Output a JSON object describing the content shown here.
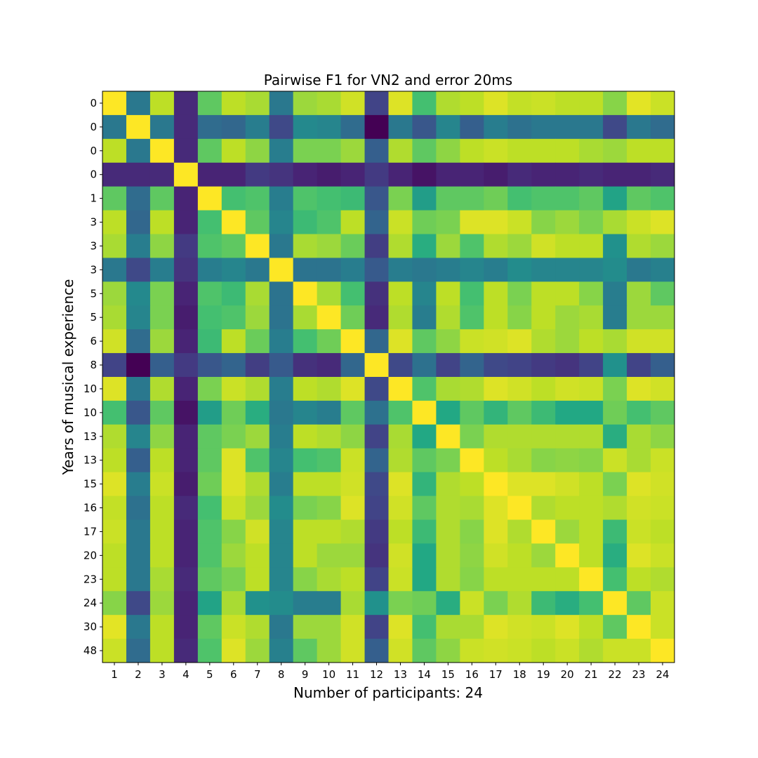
{
  "chart_data": {
    "type": "heatmap",
    "title": "Pairwise F1 for VN2 and error 20ms",
    "xlabel": "Number of participants: 24",
    "ylabel": "Years of musical experience",
    "colormap": "viridis",
    "x_tick_labels": [
      "1",
      "2",
      "3",
      "4",
      "5",
      "6",
      "7",
      "8",
      "9",
      "10",
      "11",
      "12",
      "13",
      "14",
      "15",
      "16",
      "17",
      "18",
      "19",
      "20",
      "21",
      "22",
      "23",
      "24"
    ],
    "y_tick_labels": [
      "0",
      "0",
      "0",
      "0",
      "1",
      "3",
      "3",
      "3",
      "5",
      "5",
      "6",
      "8",
      "10",
      "10",
      "13",
      "13",
      "15",
      "16",
      "17",
      "20",
      "23",
      "24",
      "30",
      "48"
    ],
    "values": [
      [
        1,
        0.4,
        0.9,
        0.12,
        0.75,
        0.9,
        0.87,
        0.4,
        0.85,
        0.87,
        0.93,
        0.2,
        0.95,
        0.7,
        0.88,
        0.9,
        0.95,
        0.91,
        0.92,
        0.9,
        0.9,
        0.82,
        0.96,
        0.92
      ],
      [
        0.4,
        1,
        0.4,
        0.12,
        0.35,
        0.33,
        0.42,
        0.22,
        0.47,
        0.45,
        0.35,
        0.0,
        0.4,
        0.27,
        0.45,
        0.3,
        0.42,
        0.37,
        0.4,
        0.4,
        0.4,
        0.22,
        0.4,
        0.35
      ],
      [
        0.9,
        0.4,
        1,
        0.12,
        0.75,
        0.9,
        0.83,
        0.42,
        0.8,
        0.8,
        0.85,
        0.3,
        0.88,
        0.75,
        0.83,
        0.9,
        0.92,
        0.9,
        0.9,
        0.9,
        0.87,
        0.85,
        0.9,
        0.9
      ],
      [
        0.12,
        0.12,
        0.12,
        1,
        0.1,
        0.1,
        0.17,
        0.15,
        0.1,
        0.08,
        0.1,
        0.17,
        0.1,
        0.05,
        0.1,
        0.1,
        0.08,
        0.12,
        0.1,
        0.1,
        0.12,
        0.1,
        0.1,
        0.12
      ],
      [
        0.75,
        0.35,
        0.75,
        0.1,
        1,
        0.7,
        0.72,
        0.42,
        0.72,
        0.7,
        0.68,
        0.27,
        0.8,
        0.55,
        0.75,
        0.75,
        0.78,
        0.7,
        0.72,
        0.72,
        0.75,
        0.58,
        0.75,
        0.72
      ],
      [
        0.9,
        0.33,
        0.9,
        0.1,
        0.7,
        1,
        0.75,
        0.45,
        0.68,
        0.72,
        0.9,
        0.32,
        0.92,
        0.78,
        0.8,
        0.95,
        0.95,
        0.92,
        0.82,
        0.85,
        0.8,
        0.87,
        0.92,
        0.95
      ],
      [
        0.87,
        0.42,
        0.83,
        0.17,
        0.72,
        0.75,
        1,
        0.4,
        0.87,
        0.85,
        0.77,
        0.18,
        0.88,
        0.62,
        0.85,
        0.72,
        0.88,
        0.85,
        0.93,
        0.9,
        0.9,
        0.5,
        0.88,
        0.85
      ],
      [
        0.4,
        0.22,
        0.42,
        0.15,
        0.42,
        0.45,
        0.4,
        1,
        0.38,
        0.38,
        0.42,
        0.28,
        0.42,
        0.4,
        0.42,
        0.45,
        0.42,
        0.48,
        0.45,
        0.45,
        0.45,
        0.48,
        0.4,
        0.43
      ],
      [
        0.85,
        0.47,
        0.8,
        0.1,
        0.72,
        0.68,
        0.87,
        0.38,
        1,
        0.87,
        0.7,
        0.14,
        0.9,
        0.45,
        0.9,
        0.7,
        0.9,
        0.8,
        0.9,
        0.9,
        0.82,
        0.42,
        0.85,
        0.75
      ],
      [
        0.87,
        0.45,
        0.8,
        0.08,
        0.7,
        0.72,
        0.85,
        0.38,
        0.87,
        1,
        0.78,
        0.12,
        0.88,
        0.42,
        0.88,
        0.72,
        0.9,
        0.82,
        0.9,
        0.85,
        0.87,
        0.42,
        0.85,
        0.85
      ],
      [
        0.93,
        0.35,
        0.85,
        0.1,
        0.68,
        0.9,
        0.77,
        0.42,
        0.7,
        0.78,
        1,
        0.33,
        0.95,
        0.75,
        0.83,
        0.92,
        0.93,
        0.95,
        0.88,
        0.85,
        0.9,
        0.87,
        0.93,
        0.93
      ],
      [
        0.2,
        0.0,
        0.3,
        0.17,
        0.27,
        0.32,
        0.18,
        0.28,
        0.14,
        0.12,
        0.33,
        1,
        0.22,
        0.37,
        0.2,
        0.32,
        0.22,
        0.2,
        0.17,
        0.15,
        0.2,
        0.5,
        0.2,
        0.3
      ],
      [
        0.95,
        0.4,
        0.88,
        0.1,
        0.8,
        0.92,
        0.88,
        0.42,
        0.9,
        0.88,
        0.95,
        0.22,
        1,
        0.72,
        0.87,
        0.88,
        0.95,
        0.93,
        0.9,
        0.93,
        0.92,
        0.8,
        0.95,
        0.93
      ],
      [
        0.7,
        0.27,
        0.75,
        0.05,
        0.55,
        0.78,
        0.62,
        0.4,
        0.45,
        0.42,
        0.75,
        0.37,
        0.72,
        1,
        0.6,
        0.75,
        0.65,
        0.75,
        0.68,
        0.6,
        0.6,
        0.78,
        0.7,
        0.75
      ],
      [
        0.88,
        0.45,
        0.83,
        0.1,
        0.75,
        0.8,
        0.85,
        0.42,
        0.9,
        0.88,
        0.83,
        0.2,
        0.87,
        0.6,
        1,
        0.8,
        0.88,
        0.88,
        0.88,
        0.88,
        0.88,
        0.62,
        0.87,
        0.83
      ],
      [
        0.9,
        0.3,
        0.9,
        0.1,
        0.75,
        0.95,
        0.72,
        0.45,
        0.7,
        0.72,
        0.92,
        0.32,
        0.88,
        0.75,
        0.8,
        1,
        0.9,
        0.87,
        0.82,
        0.83,
        0.82,
        0.92,
        0.87,
        0.92
      ],
      [
        0.95,
        0.42,
        0.92,
        0.08,
        0.78,
        0.95,
        0.88,
        0.42,
        0.9,
        0.9,
        0.93,
        0.22,
        0.95,
        0.65,
        0.88,
        0.9,
        1,
        0.95,
        0.95,
        0.93,
        0.9,
        0.8,
        0.95,
        0.93
      ],
      [
        0.91,
        0.37,
        0.9,
        0.12,
        0.7,
        0.92,
        0.85,
        0.48,
        0.8,
        0.82,
        0.95,
        0.2,
        0.93,
        0.75,
        0.88,
        0.87,
        0.95,
        1,
        0.88,
        0.9,
        0.9,
        0.88,
        0.93,
        0.92
      ],
      [
        0.92,
        0.4,
        0.9,
        0.1,
        0.72,
        0.82,
        0.93,
        0.45,
        0.9,
        0.9,
        0.88,
        0.17,
        0.9,
        0.68,
        0.88,
        0.82,
        0.95,
        0.88,
        1,
        0.85,
        0.9,
        0.68,
        0.92,
        0.9
      ],
      [
        0.9,
        0.4,
        0.9,
        0.1,
        0.72,
        0.85,
        0.9,
        0.45,
        0.9,
        0.85,
        0.85,
        0.15,
        0.93,
        0.6,
        0.88,
        0.83,
        0.93,
        0.9,
        0.85,
        1,
        0.9,
        0.62,
        0.95,
        0.92
      ],
      [
        0.9,
        0.4,
        0.87,
        0.12,
        0.75,
        0.8,
        0.9,
        0.45,
        0.82,
        0.87,
        0.9,
        0.2,
        0.92,
        0.6,
        0.88,
        0.82,
        0.9,
        0.9,
        0.9,
        0.9,
        1,
        0.7,
        0.9,
        0.88
      ],
      [
        0.82,
        0.22,
        0.85,
        0.1,
        0.58,
        0.87,
        0.5,
        0.48,
        0.42,
        0.42,
        0.87,
        0.5,
        0.8,
        0.78,
        0.62,
        0.92,
        0.8,
        0.88,
        0.68,
        0.62,
        0.7,
        1,
        0.75,
        0.92
      ],
      [
        0.96,
        0.4,
        0.9,
        0.1,
        0.75,
        0.92,
        0.88,
        0.4,
        0.85,
        0.85,
        0.93,
        0.2,
        0.95,
        0.7,
        0.87,
        0.87,
        0.95,
        0.93,
        0.92,
        0.95,
        0.9,
        0.75,
        1,
        0.92
      ],
      [
        0.92,
        0.35,
        0.9,
        0.12,
        0.72,
        0.95,
        0.85,
        0.43,
        0.75,
        0.85,
        0.93,
        0.3,
        0.93,
        0.75,
        0.83,
        0.92,
        0.93,
        0.92,
        0.9,
        0.92,
        0.88,
        0.92,
        0.92,
        1
      ]
    ]
  }
}
